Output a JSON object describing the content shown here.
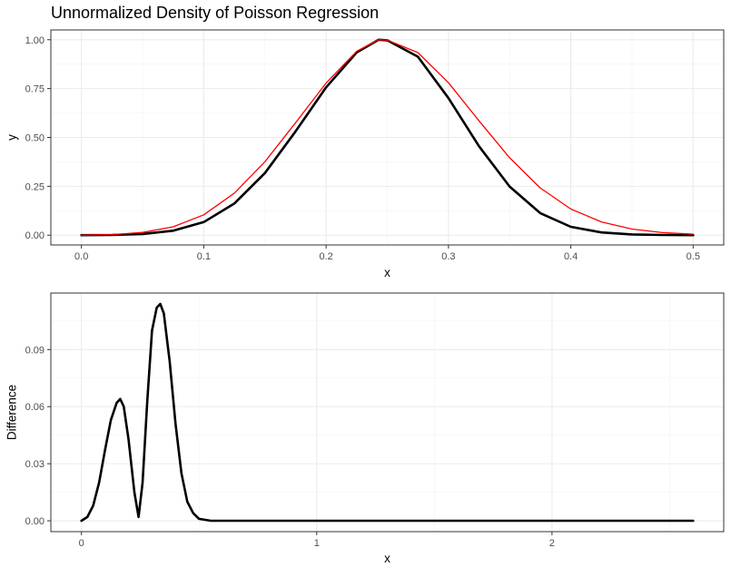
{
  "chart_data": [
    {
      "type": "line",
      "title": "Unnormalized Density of Poisson Regression",
      "xlabel": "x",
      "ylabel": "y",
      "xlim": [
        -0.025,
        0.525
      ],
      "ylim": [
        -0.05,
        1.05
      ],
      "x_ticks": [
        0,
        0.1,
        0.2,
        0.3,
        0.4,
        0.5
      ],
      "x_tick_labels": [
        "0.0",
        "0.1",
        "0.2",
        "0.3",
        "0.4",
        "0.5"
      ],
      "y_ticks": [
        0,
        0.25,
        0.5,
        0.75,
        1.0
      ],
      "y_tick_labels": [
        "0.00",
        "0.25",
        "0.50",
        "0.75",
        "1.00"
      ],
      "grid": true,
      "legend": "none",
      "x": [
        0,
        0.025,
        0.05,
        0.075,
        0.1,
        0.125,
        0.15,
        0.175,
        0.2,
        0.225,
        0.243,
        0.25,
        0.275,
        0.3,
        0.325,
        0.35,
        0.375,
        0.4,
        0.425,
        0.45,
        0.475,
        0.5
      ],
      "series": [
        {
          "color": "#000000",
          "values": [
            0.0,
            0.001,
            0.006,
            0.023,
            0.067,
            0.162,
            0.318,
            0.531,
            0.756,
            0.935,
            1.0,
            0.997,
            0.913,
            0.701,
            0.455,
            0.249,
            0.113,
            0.043,
            0.014,
            0.004,
            0.001,
            0.0
          ]
        },
        {
          "color": "#ff0000",
          "values": [
            0.0,
            0.003,
            0.014,
            0.043,
            0.104,
            0.215,
            0.376,
            0.575,
            0.778,
            0.941,
            1.0,
            0.998,
            0.934,
            0.78,
            0.585,
            0.396,
            0.242,
            0.134,
            0.068,
            0.031,
            0.013,
            0.005
          ]
        }
      ]
    },
    {
      "type": "line",
      "title": "",
      "xlabel": "x",
      "ylabel": "Difference",
      "xlim": [
        -0.13,
        2.73
      ],
      "ylim": [
        -0.0057,
        0.1197
      ],
      "x_ticks": [
        0,
        1,
        2
      ],
      "x_tick_labels": [
        "0",
        "1",
        "2"
      ],
      "y_ticks": [
        0,
        0.03,
        0.06,
        0.09
      ],
      "y_tick_labels": [
        "0.00",
        "0.03",
        "0.06",
        "0.09"
      ],
      "grid": true,
      "legend": "none",
      "x": [
        0,
        0.025,
        0.05,
        0.075,
        0.1,
        0.125,
        0.15,
        0.165,
        0.18,
        0.2,
        0.225,
        0.243,
        0.26,
        0.28,
        0.3,
        0.32,
        0.335,
        0.35,
        0.375,
        0.4,
        0.425,
        0.45,
        0.475,
        0.5,
        0.55,
        0.6,
        0.8,
        1.0,
        1.5,
        2.0,
        2.6
      ],
      "series": [
        {
          "color": "#000000",
          "values": [
            0.0,
            0.002,
            0.008,
            0.02,
            0.037,
            0.053,
            0.062,
            0.064,
            0.06,
            0.043,
            0.015,
            0.002,
            0.02,
            0.063,
            0.1,
            0.112,
            0.114,
            0.109,
            0.084,
            0.051,
            0.025,
            0.01,
            0.004,
            0.001,
            0.0,
            0.0,
            0.0,
            0.0,
            0.0,
            0.0,
            0.0
          ]
        }
      ]
    }
  ]
}
